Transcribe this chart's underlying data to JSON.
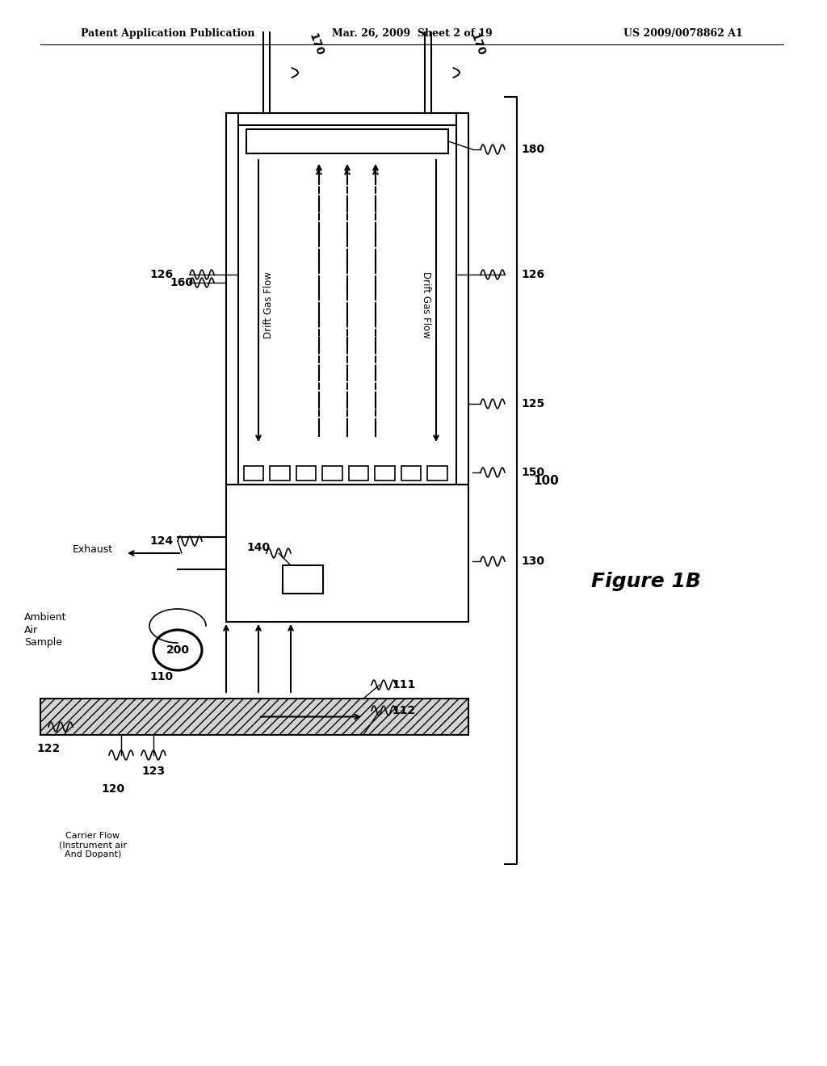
{
  "bg_color": "#ffffff",
  "header_left": "Patent Application Publication",
  "header_mid": "Mar. 26, 2009  Sheet 2 of 19",
  "header_right": "US 2009/0078862 A1",
  "figure_label": "Figure 1B",
  "labels": {
    "170a": "170",
    "170b": "170",
    "180": "180",
    "126a": "126",
    "126b": "126",
    "160": "160",
    "125": "125",
    "150": "150",
    "130": "130",
    "100": "100",
    "140": "140",
    "110": "110",
    "111": "111",
    "112": "112",
    "122": "122",
    "120": "120",
    "123": "123",
    "124": "124",
    "200": "200",
    "drift_left": "Drift Gas Flow",
    "drift_right": "Drift Gas Flow",
    "exhaust": "Exhaust",
    "ambient": "Ambient\nAir\nSample",
    "carrier": "Carrier Flow\n(Instrument air\nAnd Dopant)"
  }
}
